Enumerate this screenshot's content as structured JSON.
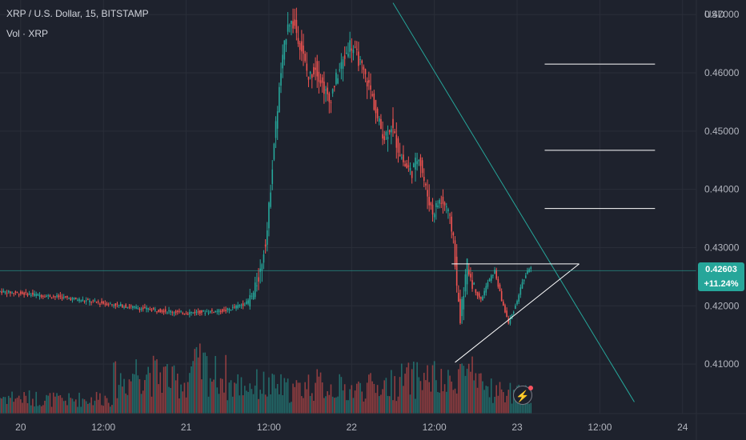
{
  "legend": {
    "title": "XRP / U.S. Dollar, 15, BITSTAMP",
    "volume": "Vol · XRP"
  },
  "colors": {
    "background": "#1e222d",
    "grid": "#2a2e39",
    "up": "#26a69a",
    "down": "#ef5350",
    "text": "#b2b5be",
    "drawing": "#ffffff",
    "trendline": "#26a69a"
  },
  "price_tag": {
    "price": "0.42603",
    "change": "+11.24%"
  },
  "icons": {
    "replay": "lightning-icon"
  },
  "chart_data": {
    "type": "candlestick",
    "symbol": "XRP / U.S. Dollar",
    "interval": "15",
    "exchange": "BITSTAMP",
    "y_axis_unit": "USD",
    "y_ticks": [
      "0.47000",
      "0.46000",
      "0.45000",
      "0.44000",
      "0.43000",
      "0.42000",
      "0.41000"
    ],
    "ylim": [
      0.4015,
      0.4725
    ],
    "x_ticks": [
      "20",
      "12:00",
      "21",
      "12:00",
      "22",
      "12:00",
      "23",
      "12:00",
      "24"
    ],
    "x_tick_hours": [
      0,
      12,
      24,
      36,
      48,
      60,
      72,
      84,
      96
    ],
    "xlim_hours": [
      -3,
      98
    ],
    "grid": true,
    "last_price": 0.42603,
    "change_percent": "+11.24%",
    "price_path": [
      [
        -3,
        0.4225
      ],
      [
        6,
        0.4215
      ],
      [
        12,
        0.4205
      ],
      [
        18,
        0.4195
      ],
      [
        24,
        0.4188
      ],
      [
        30,
        0.4192
      ],
      [
        33,
        0.4205
      ],
      [
        34,
        0.422
      ],
      [
        35,
        0.426
      ],
      [
        36,
        0.433
      ],
      [
        37,
        0.448
      ],
      [
        38,
        0.46
      ],
      [
        39,
        0.469
      ],
      [
        40,
        0.468
      ],
      [
        41,
        0.464
      ],
      [
        42,
        0.459
      ],
      [
        43,
        0.461
      ],
      [
        44,
        0.458
      ],
      [
        45,
        0.455
      ],
      [
        46,
        0.459
      ],
      [
        47,
        0.462
      ],
      [
        48,
        0.465
      ],
      [
        49,
        0.463
      ],
      [
        50,
        0.46
      ],
      [
        51,
        0.457
      ],
      [
        52,
        0.452
      ],
      [
        53,
        0.449
      ],
      [
        54,
        0.451
      ],
      [
        55,
        0.447
      ],
      [
        56,
        0.444
      ],
      [
        57,
        0.443
      ],
      [
        58,
        0.446
      ],
      [
        59,
        0.44
      ],
      [
        60,
        0.436
      ],
      [
        61,
        0.438
      ],
      [
        62,
        0.437
      ],
      [
        63,
        0.432
      ],
      [
        63.5,
        0.423
      ],
      [
        64,
        0.418
      ],
      [
        65,
        0.427
      ],
      [
        66,
        0.423
      ],
      [
        67,
        0.421
      ],
      [
        68,
        0.424
      ],
      [
        69,
        0.426
      ],
      [
        70,
        0.421
      ],
      [
        71,
        0.417
      ],
      [
        72,
        0.42
      ],
      [
        73,
        0.424
      ],
      [
        74,
        0.4265
      ]
    ],
    "volume_relative": [
      0.35,
      0.32,
      0.3,
      0.28,
      0.3,
      0.33,
      0.7,
      0.9,
      0.8,
      0.65,
      0.95,
      0.8,
      0.6,
      0.6,
      0.55,
      0.5,
      0.6,
      0.55,
      0.5,
      0.55,
      0.6,
      0.7,
      0.75,
      0.6,
      0.9,
      0.55,
      0.45,
      0.4
    ],
    "drawings": [
      {
        "kind": "trendline",
        "from": [
          54,
          0.472
        ],
        "to": [
          89,
          0.4035
        ]
      },
      {
        "kind": "horizontal_segment",
        "price": 0.4615,
        "from_hour": 76,
        "to_hour": 92
      },
      {
        "kind": "horizontal_segment",
        "price": 0.4467,
        "from_hour": 76,
        "to_hour": 92
      },
      {
        "kind": "horizontal_segment",
        "price": 0.4367,
        "from_hour": 76,
        "to_hour": 92
      },
      {
        "kind": "horizontal_segment",
        "price": 0.4272,
        "from_hour": 62.5,
        "to_hour": 81
      },
      {
        "kind": "trendline",
        "from": [
          63,
          0.4103
        ],
        "to": [
          81,
          0.4272
        ]
      }
    ]
  }
}
